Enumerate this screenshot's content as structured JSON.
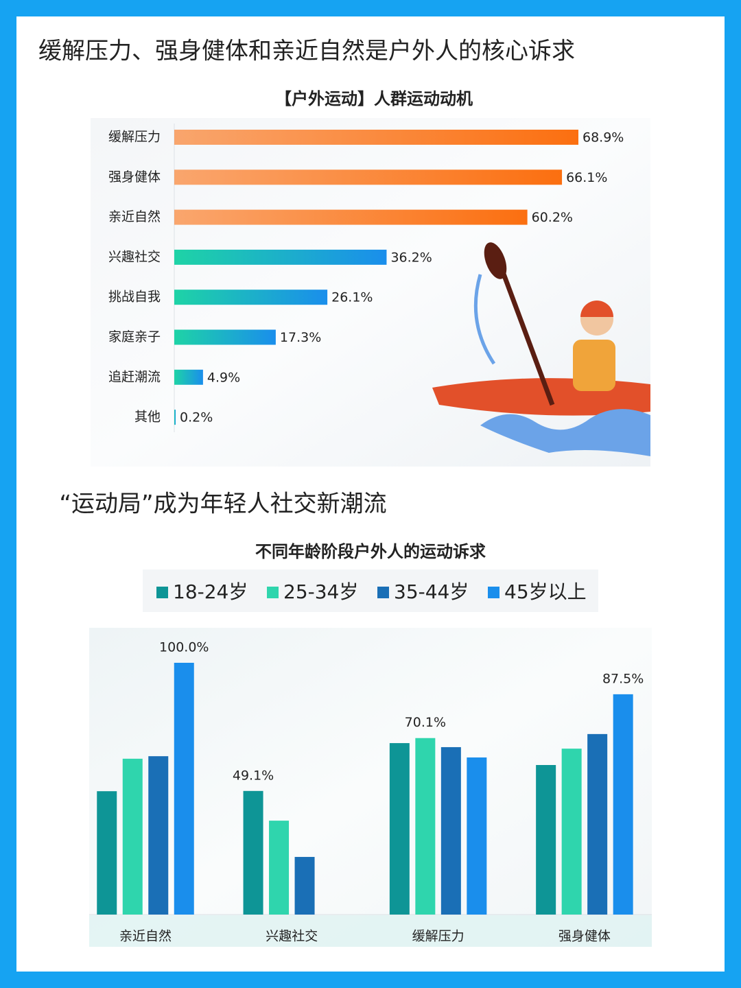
{
  "headline": "缓解压力、强身健体和亲近自然是户外人的核心诉求",
  "subheadline": "“运动局”成为年轻人社交新潮流",
  "chart_data": [
    {
      "type": "bar",
      "orientation": "horizontal",
      "title": "【户外运动】人群运动动机",
      "categories": [
        "缓解压力",
        "强身健体",
        "亲近自然",
        "兴趣社交",
        "挑战自我",
        "家庭亲子",
        "追赶潮流",
        "其他"
      ],
      "values": [
        68.9,
        66.1,
        60.2,
        36.2,
        26.1,
        17.3,
        4.9,
        0.2
      ],
      "value_labels": [
        "68.9%",
        "66.1%",
        "60.2%",
        "36.2%",
        "26.1%",
        "17.3%",
        "4.9%",
        "0.2%"
      ],
      "colors": [
        "#fb6f10",
        "#fb6f10",
        "#fb6f10",
        "#1a8eec",
        "#1a8eec",
        "#1a8eec",
        "#1a8eec",
        "#1a8eec"
      ]
    },
    {
      "type": "bar",
      "orientation": "vertical",
      "title": "不同年龄阶段户外人的运动诉求",
      "categories": [
        "亲近自然",
        "兴趣社交",
        "缓解压力",
        "强身健体"
      ],
      "series": [
        {
          "name": "18-24岁",
          "color": "#0e9596",
          "values": [
            49.0,
            49.1,
            68.1,
            59.4
          ],
          "value_labels": [
            null,
            "49.1%",
            null,
            null
          ]
        },
        {
          "name": "25-34岁",
          "color": "#2fd5ad",
          "values": [
            61.9,
            37.3,
            70.1,
            65.9
          ],
          "value_labels": [
            null,
            null,
            "70.1%",
            null
          ]
        },
        {
          "name": "35-44岁",
          "color": "#1a6fb6",
          "values": [
            62.9,
            22.9,
            66.5,
            71.7
          ],
          "value_labels": [
            null,
            null,
            null,
            null
          ]
        },
        {
          "name": "45岁以上",
          "color": "#1a8eec",
          "values": [
            100.0,
            null,
            62.4,
            87.5
          ],
          "value_labels": [
            "100.0%",
            null,
            null,
            "87.5%"
          ]
        }
      ]
    }
  ]
}
